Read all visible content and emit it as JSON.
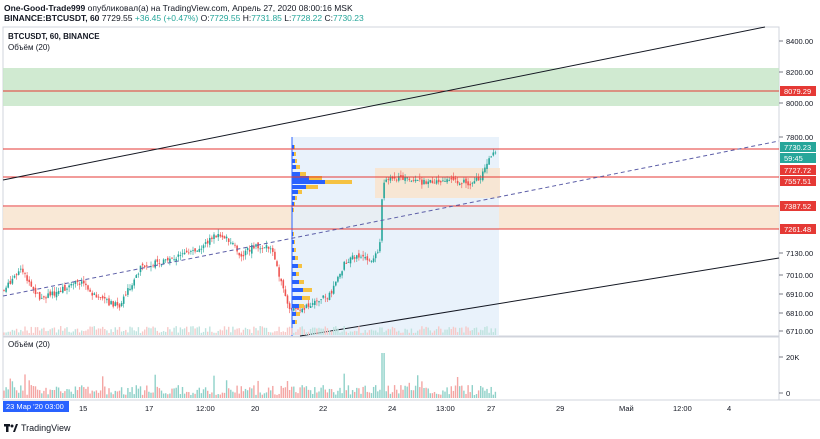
{
  "header": {
    "author": "One-Good-Trade999",
    "published_text": "опубликовал(а) на TradingView.com, Апрель 27, 2020 08:00:16 MSK",
    "symbol_full": "BINANCE:BTCUSDT, 60",
    "ohlc": {
      "change": "+36.45 (+0.47%)",
      "o_label": "O:",
      "o": "7729.55",
      "h_label": "H:",
      "h": "7731.85",
      "l_label": "L:",
      "l": "7728.22",
      "c_label": "C:",
      "c": "7730.23",
      "last": "7729.55"
    }
  },
  "pane": {
    "symbol": "BTCUSDT, 60, BINANCE",
    "volume_overlay": "Объём (20)",
    "volume_pane_title": "Объём (20)"
  },
  "colors": {
    "up": "#26a69a",
    "down": "#ef5350",
    "zone_green": "#c8e6c9",
    "zone_orange": "#f8e4cf",
    "hline": "#e53935",
    "vp_blue": "#2962ff",
    "vp_yellow": "#f5c242",
    "range_bg": "#e3effa"
  },
  "price_axis": {
    "ticks": [
      "8400.00",
      "8200.00",
      "8000.00",
      "7800.00",
      "7130.00",
      "7010.00",
      "6910.00",
      "6810.00",
      "6710.00"
    ],
    "labels": [
      {
        "text": "8079.29",
        "bg": "#e53935"
      },
      {
        "text": "7730.23",
        "bg": "#26a69a"
      },
      {
        "text": "59:45",
        "bg": "#26a69a"
      },
      {
        "text": "7727.72",
        "bg": "#e53935"
      },
      {
        "text": "7557.51",
        "bg": "#e53935"
      },
      {
        "text": "7387.52",
        "bg": "#e53935"
      },
      {
        "text": "7261.48",
        "bg": "#e53935"
      }
    ]
  },
  "volume_axis": {
    "ticks": [
      "20K",
      "0"
    ]
  },
  "time_axis": {
    "current": "23 Мар '20   03:00",
    "ticks": [
      "15",
      "17",
      "12:00",
      "20",
      "22",
      "24",
      "13:00",
      "27",
      "29",
      "Май",
      "12:00",
      "4"
    ]
  },
  "footer": {
    "brand": "TradingView"
  },
  "chart_data": {
    "type": "candlestick",
    "symbol": "BTCUSDT",
    "exchange": "BINANCE",
    "interval": "60",
    "horizontal_levels": [
      8079.29,
      7727.72,
      7557.51,
      7387.52,
      7261.48
    ],
    "zones": [
      {
        "from": 7990,
        "to": 8220,
        "color": "green"
      },
      {
        "from": 7261.48,
        "to": 7387.52,
        "color": "orange"
      }
    ],
    "last_price": 7730.23,
    "volume_ylim": [
      0,
      20000
    ]
  }
}
